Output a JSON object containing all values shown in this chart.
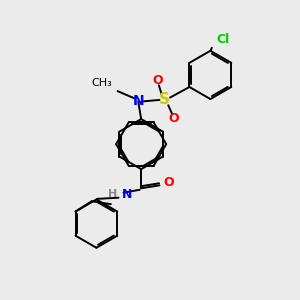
{
  "background_color": "#ebebeb",
  "bond_color": "#000000",
  "atom_colors": {
    "N": "#0000ff",
    "O": "#ff0000",
    "S": "#cccc00",
    "Cl": "#00cc00",
    "H": "#888888",
    "C": "#000000"
  },
  "figsize": [
    3.0,
    3.0
  ],
  "dpi": 100,
  "lw": 1.4
}
